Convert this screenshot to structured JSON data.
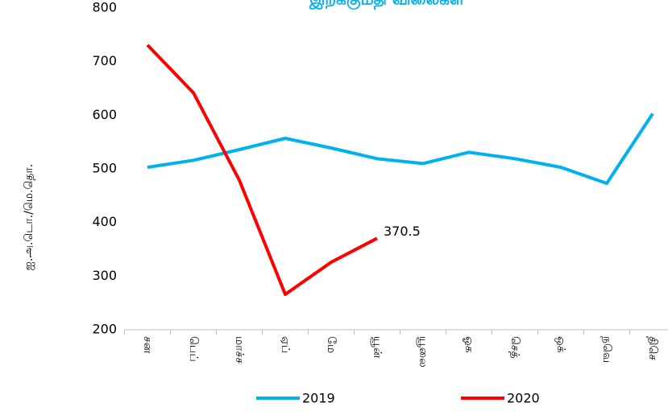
{
  "chart_data": {
    "type": "line",
    "title": "இறக்குமதி விலைகள்",
    "y_label": "ஐ.அ.டொ./மெ.தொ.",
    "categories": [
      "சன",
      "பெப்",
      "மாச்ச",
      "ஏப்",
      "மே",
      "யூன்",
      "யூலை",
      "ஓக",
      "செத்",
      "ஒக்",
      "நவெ",
      "திசெ"
    ],
    "series": [
      {
        "name": "2019",
        "color": "#00b0f0",
        "values": [
          503,
          516,
          536,
          557,
          539,
          519,
          510,
          531,
          519,
          503,
          473,
          603
        ]
      },
      {
        "name": "2020",
        "color": "#ff0000",
        "values": [
          731,
          642,
          479,
          266,
          326,
          370.5,
          null,
          null,
          null,
          null,
          null,
          null
        ],
        "value_labels": [
          null,
          null,
          null,
          null,
          null,
          "370.5",
          null,
          null,
          null,
          null,
          null,
          null
        ]
      }
    ],
    "ylim": [
      200,
      800
    ],
    "yticks": [
      200,
      300,
      400,
      500,
      600,
      700,
      800
    ],
    "legend": "bottom"
  }
}
